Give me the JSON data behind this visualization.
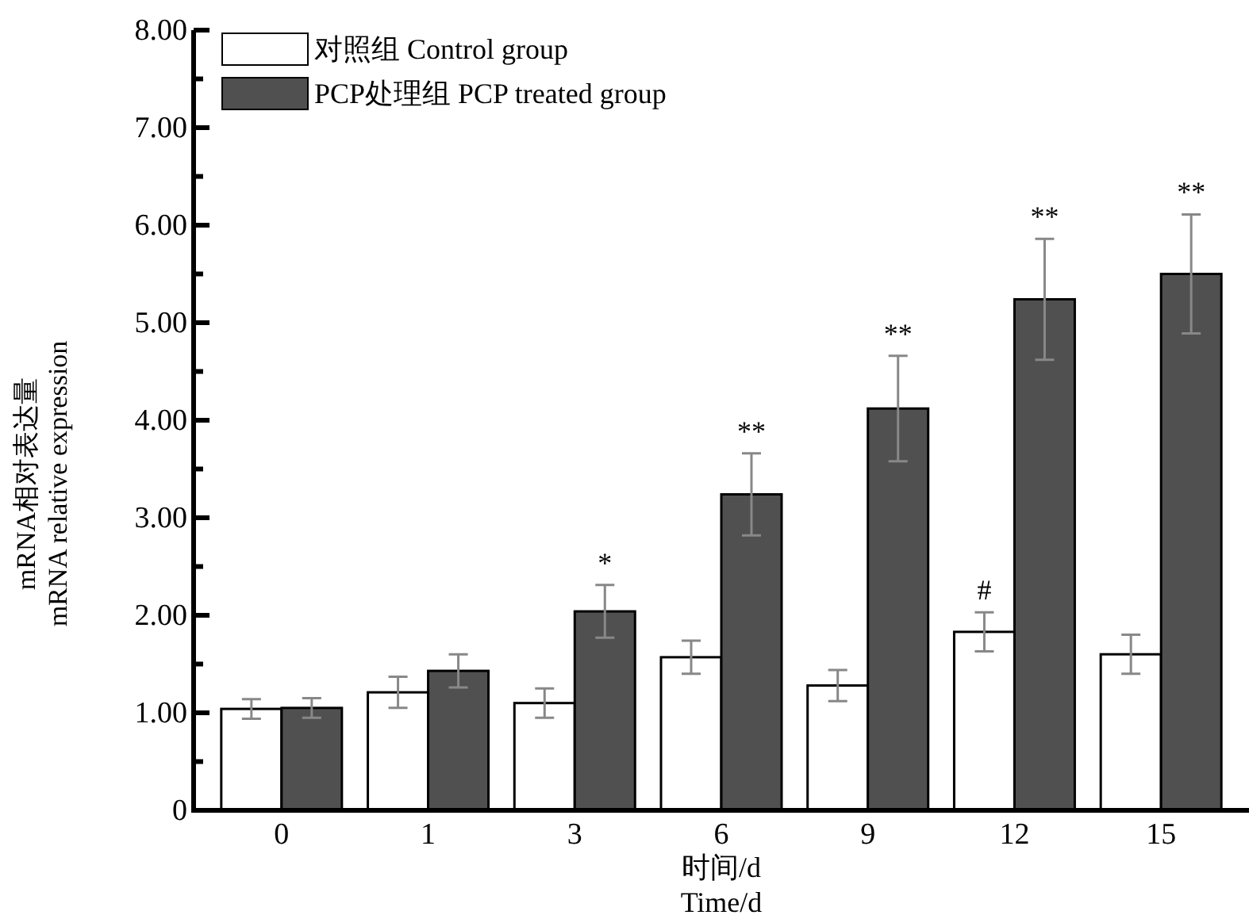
{
  "chart_data": {
    "type": "bar",
    "xlabel": "时间/d\nTime/d",
    "ylabel": "mRNA相对表达量\nmRNA relative expression",
    "categories": [
      "0",
      "1",
      "3",
      "6",
      "9",
      "12",
      "15"
    ],
    "series": [
      {
        "name": "对照组 Control group",
        "color": "#ffffff",
        "values": [
          1.04,
          1.21,
          1.1,
          1.57,
          1.28,
          1.83,
          1.6
        ],
        "errors": [
          0.1,
          0.16,
          0.15,
          0.17,
          0.16,
          0.2,
          0.2
        ]
      },
      {
        "name": "PCP处理组 PCP treated group",
        "color": "#505050",
        "values": [
          1.05,
          1.43,
          2.04,
          3.24,
          4.12,
          5.24,
          5.5
        ],
        "errors": [
          0.1,
          0.17,
          0.27,
          0.42,
          0.54,
          0.62,
          0.61
        ]
      }
    ],
    "ylim": [
      0,
      8
    ],
    "yticks": [
      {
        "value": 0,
        "label": "0"
      },
      {
        "value": 0.5,
        "label": null
      },
      {
        "value": 1,
        "label": "1.00"
      },
      {
        "value": 1.5,
        "label": null
      },
      {
        "value": 2,
        "label": "2.00"
      },
      {
        "value": 2.5,
        "label": null
      },
      {
        "value": 3,
        "label": "3.00"
      },
      {
        "value": 3.5,
        "label": null
      },
      {
        "value": 4,
        "label": "4.00"
      },
      {
        "value": 4.5,
        "label": null
      },
      {
        "value": 5,
        "label": "5.00"
      },
      {
        "value": 5.5,
        "label": null
      },
      {
        "value": 6,
        "label": "6.00"
      },
      {
        "value": 6.5,
        "label": null
      },
      {
        "value": 7,
        "label": "7.00"
      },
      {
        "value": 7.5,
        "label": null
      },
      {
        "value": 8,
        "label": "8.00"
      }
    ],
    "annotations": [
      {
        "text": "*",
        "x": "3",
        "y": 2.04
      },
      {
        "text": "**",
        "x": "6",
        "y": 3.24
      },
      {
        "text": "**",
        "x": "9",
        "y": 4.12
      },
      {
        "text": "#",
        "x": "12",
        "y": 1.83
      },
      {
        "text": "**",
        "x": "12",
        "y": 5.24
      },
      {
        "text": "**",
        "x": "15",
        "y": 5.5
      }
    ],
    "legend": "top left"
  }
}
